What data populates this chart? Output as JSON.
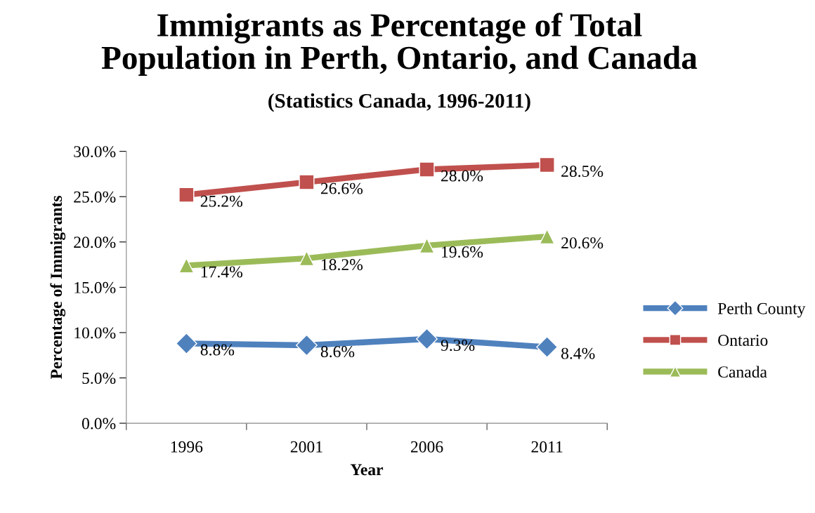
{
  "chart_data": {
    "type": "line",
    "title": "Immigrants as Percentage of Total\nPopulation in Perth, Ontario, and Canada",
    "subtitle": "(Statistics Canada, 1996-2011)",
    "xlabel": "Year",
    "ylabel": "Percentage of Immigrants",
    "categories": [
      "1996",
      "2001",
      "2006",
      "2011"
    ],
    "series": [
      {
        "name": "Perth County",
        "color": "#4f81bd",
        "marker": "diamond",
        "values": [
          8.8,
          8.6,
          9.3,
          8.4
        ],
        "value_labels": [
          "8.8%",
          "8.6%",
          "9.3%",
          "8.4%"
        ]
      },
      {
        "name": "Ontario",
        "color": "#c0504d",
        "marker": "square",
        "values": [
          25.2,
          26.6,
          28.0,
          28.5
        ],
        "value_labels": [
          "25.2%",
          "26.6%",
          "28.0%",
          "28.5%"
        ]
      },
      {
        "name": "Canada",
        "color": "#9bbb59",
        "marker": "triangle",
        "values": [
          17.4,
          18.2,
          19.6,
          20.6
        ],
        "value_labels": [
          "17.4%",
          "18.2%",
          "19.6%",
          "20.6%"
        ]
      }
    ],
    "ylim": [
      0,
      30
    ],
    "yticks": [
      {
        "value": 0,
        "label": "0.0%"
      },
      {
        "value": 5,
        "label": "5.0%"
      },
      {
        "value": 10,
        "label": "10.0%"
      },
      {
        "value": 15,
        "label": "15.0%"
      },
      {
        "value": 20,
        "label": "20.0%"
      },
      {
        "value": 25,
        "label": "25.0%"
      },
      {
        "value": 30,
        "label": "30.0%"
      }
    ],
    "grid": false,
    "legend": "right",
    "line_style": "solid"
  }
}
